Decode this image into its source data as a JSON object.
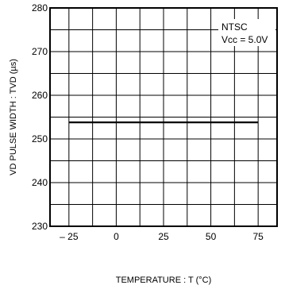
{
  "chart_data": {
    "type": "line",
    "title": "",
    "xlabel": "TEMPERATURE : T (°C)",
    "ylabel": "VD PULSE WIDTH : TVD (µs)",
    "xlim": [
      -35,
      85
    ],
    "ylim": [
      230,
      280
    ],
    "x_ticks": [
      -25,
      0,
      25,
      50,
      75
    ],
    "x_tick_labels": [
      "– 25",
      "0",
      "25",
      "50",
      "75"
    ],
    "y_ticks": [
      230,
      240,
      250,
      260,
      270,
      280
    ],
    "y_tick_labels": [
      "230",
      "240",
      "250",
      "260",
      "270",
      "280"
    ],
    "grid": true,
    "annotation": [
      "NTSC",
      "Vcc = 5.0V"
    ],
    "series": [
      {
        "x": [
          -25,
          75
        ],
        "y": [
          253.8,
          253.8
        ]
      }
    ]
  }
}
